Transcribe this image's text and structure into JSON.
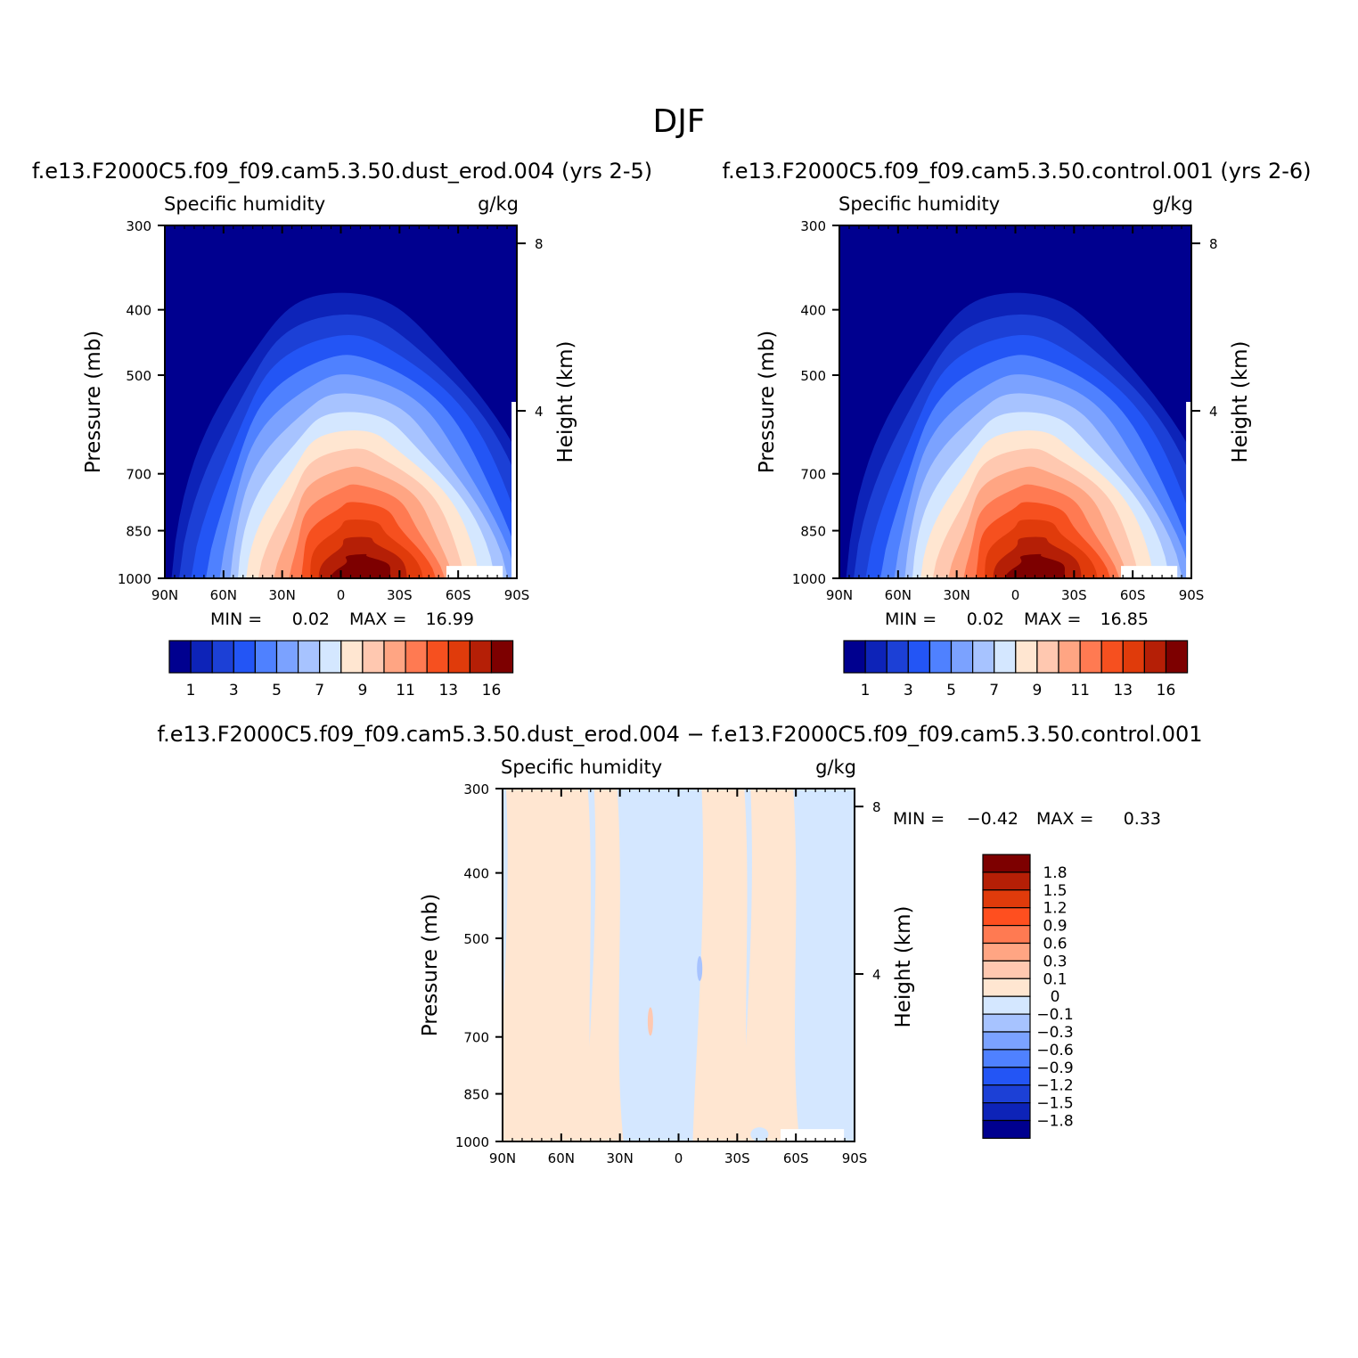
{
  "page_title": "DJF",
  "chart_data": [
    {
      "type": "contour",
      "title": "f.e13.F2000C5.f09_f09.cam5.3.50.dust_erod.004 (yrs 2-5)",
      "left_subtitle": "Specific humidity",
      "right_subtitle": "g/kg",
      "ylabel": "Pressure (mb)",
      "y2label": "Height (km)",
      "xticks": [
        "90N",
        "60N",
        "30N",
        "0",
        "30S",
        "60S",
        "90S"
      ],
      "yticks": [
        "300",
        "400",
        "500",
        "700",
        "850",
        "1000"
      ],
      "y2ticks": [
        "8",
        "4"
      ],
      "ylim": [
        1000,
        300
      ],
      "min_label": "MIN =",
      "min_value": "0.02",
      "max_label": "MAX =",
      "max_value": "16.99",
      "levels": [
        1,
        2,
        3,
        4,
        5,
        6,
        7,
        8,
        9,
        10,
        11,
        12,
        13,
        14,
        16
      ],
      "colorbar_labels": [
        "1",
        "3",
        "5",
        "7",
        "9",
        "11",
        "13",
        "16"
      ],
      "max_field": 16.99
    },
    {
      "type": "contour",
      "title": "f.e13.F2000C5.f09_f09.cam5.3.50.control.001 (yrs 2-6)",
      "left_subtitle": "Specific humidity",
      "right_subtitle": "g/kg",
      "ylabel": "Pressure (mb)",
      "y2label": "Height (km)",
      "xticks": [
        "90N",
        "60N",
        "30N",
        "0",
        "30S",
        "60S",
        "90S"
      ],
      "yticks": [
        "300",
        "400",
        "500",
        "700",
        "850",
        "1000"
      ],
      "y2ticks": [
        "8",
        "4"
      ],
      "ylim": [
        1000,
        300
      ],
      "min_label": "MIN =",
      "min_value": "0.02",
      "max_label": "MAX =",
      "max_value": "16.85",
      "levels": [
        1,
        2,
        3,
        4,
        5,
        6,
        7,
        8,
        9,
        10,
        11,
        12,
        13,
        14,
        16
      ],
      "colorbar_labels": [
        "1",
        "3",
        "5",
        "7",
        "9",
        "11",
        "13",
        "16"
      ],
      "max_field": 16.85
    },
    {
      "type": "contour",
      "title": "f.e13.F2000C5.f09_f09.cam5.3.50.dust_erod.004 − f.e13.F2000C5.f09_f09.cam5.3.50.control.001",
      "left_subtitle": "Specific humidity",
      "right_subtitle": "g/kg",
      "ylabel": "Pressure (mb)",
      "y2label": "Height (km)",
      "xticks": [
        "90N",
        "60N",
        "30N",
        "0",
        "30S",
        "60S",
        "90S"
      ],
      "yticks": [
        "300",
        "400",
        "500",
        "700",
        "850",
        "1000"
      ],
      "y2ticks": [
        "8",
        "4"
      ],
      "ylim": [
        1000,
        300
      ],
      "min_label": "MIN =",
      "min_value": "−0.42",
      "max_label": "MAX =",
      "max_value": "0.33",
      "levels": [
        -1.8,
        -1.5,
        -1.2,
        -0.9,
        -0.6,
        -0.3,
        -0.1,
        0,
        0.1,
        0.3,
        0.6,
        0.9,
        1.2,
        1.5,
        1.8
      ],
      "colorbar_labels": [
        "1.8",
        "1.5",
        "1.2",
        "0.9",
        "0.6",
        "0.3",
        "0.1",
        "0",
        "−0.1",
        "−0.3",
        "−0.6",
        "−0.9",
        "−1.2",
        "−1.5",
        "−1.8"
      ],
      "bands": [
        {
          "lat_from": -90,
          "lat_to": -60,
          "sign": "negative"
        },
        {
          "lat_from": -60,
          "lat_to": -35,
          "sign": "positive"
        },
        {
          "lat_from": -35,
          "lat_to": -10,
          "sign": "positive"
        },
        {
          "lat_from": -10,
          "lat_to": 30,
          "sign": "negative"
        },
        {
          "lat_from": 30,
          "lat_to": 45,
          "sign": "positive"
        },
        {
          "lat_from": 45,
          "lat_to": 90,
          "sign": "positive"
        }
      ]
    }
  ],
  "colors": {
    "seq_palette": [
      "#00008f",
      "#0d23b8",
      "#1c40d6",
      "#2355f5",
      "#4f81ff",
      "#7ba2ff",
      "#a7c3ff",
      "#d4e7ff",
      "#ffe6d1",
      "#ffc8b0",
      "#ffa583",
      "#ff7a52",
      "#f6501f",
      "#e03b0b",
      "#b51f06",
      "#7d0000"
    ],
    "neg_fill": "#d4e7ff",
    "pos_fill": "#ffe6d1",
    "neg_spot": "#a7c3ff",
    "pos_spot": "#ffc8b0"
  }
}
